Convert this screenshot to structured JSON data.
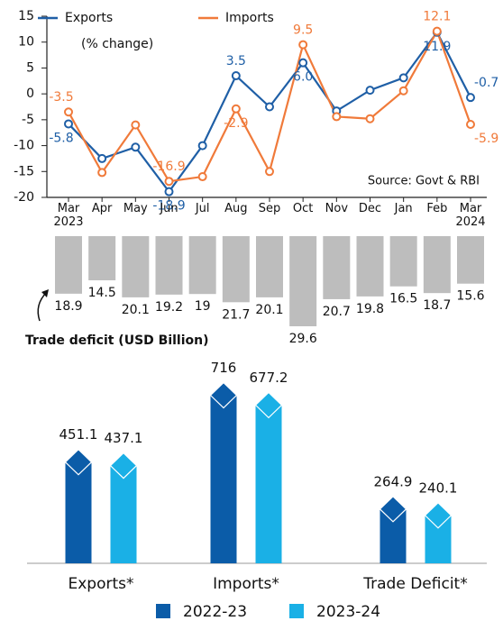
{
  "chart_data": [
    {
      "type": "line",
      "subtitle": "(% change)",
      "annotation": "Source: Govt & RBI",
      "categories": [
        "Mar\n2023",
        "Apr",
        "May",
        "Jun",
        "Jul",
        "Aug",
        "Sep",
        "Oct",
        "Nov",
        "Dec",
        "Jan",
        "Feb",
        "Mar\n2024"
      ],
      "series": [
        {
          "name": "Exports",
          "color": "#1f5fa6",
          "values": [
            -5.8,
            -12.5,
            -10.3,
            -18.9,
            -10,
            3.5,
            -2.5,
            6.0,
            -3.3,
            0.7,
            3.1,
            11.9,
            -0.7
          ],
          "value_labels": [
            "-5.8",
            null,
            null,
            "-18.9",
            null,
            "3.5",
            null,
            "6.0",
            null,
            null,
            null,
            "11.9",
            "-0.7"
          ]
        },
        {
          "name": "Imports",
          "color": "#f07a3a",
          "values": [
            -3.5,
            -15.2,
            -6,
            -16.9,
            -16,
            -2.9,
            -15,
            9.5,
            -4.4,
            -4.8,
            0.6,
            12.1,
            -5.9
          ],
          "value_labels": [
            "-3.5",
            null,
            null,
            "-16.9",
            null,
            "-2.9",
            null,
            "9.5",
            null,
            null,
            null,
            "12.1",
            "-5.9"
          ]
        }
      ],
      "ylim": [
        -20,
        15
      ],
      "yticks": [
        -20,
        -15,
        -10,
        -5,
        0,
        5,
        10,
        15
      ]
    },
    {
      "type": "bar",
      "title": "Trade deficit (USD Billion)",
      "color": "#bdbdbd",
      "values": [
        18.9,
        14.5,
        20.1,
        19.2,
        19,
        21.7,
        20.1,
        29.6,
        20.7,
        19.8,
        16.5,
        18.7,
        15.6
      ]
    },
    {
      "type": "grouped-bar",
      "categories": [
        "Exports*",
        "Imports*",
        "Trade Deficit*"
      ],
      "series": [
        {
          "name": "2022-23",
          "color": "#0b5ca8",
          "values": [
            451.1,
            716,
            264.9
          ]
        },
        {
          "name": "2023-24",
          "color": "#1ab0e6",
          "values": [
            437.1,
            677.2,
            240.1
          ]
        }
      ]
    }
  ]
}
